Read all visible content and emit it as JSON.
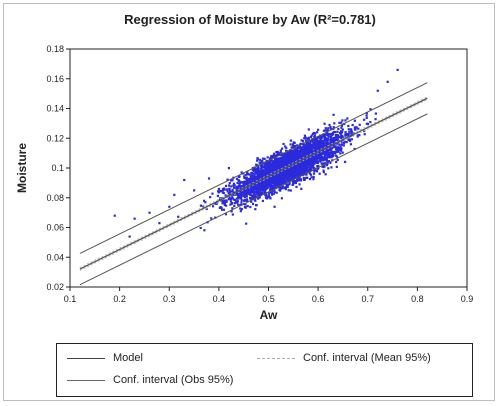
{
  "chart_data": {
    "type": "scatter",
    "title": "Regression of Moisture by Aw (R²=0.781)",
    "xlabel": "Aw",
    "ylabel": "Moisture",
    "xlim": [
      0.1,
      0.9
    ],
    "ylim": [
      0.02,
      0.18
    ],
    "xticks": [
      "0.1",
      "0.2",
      "0.3",
      "0.4",
      "0.5",
      "0.6",
      "0.7",
      "0.8",
      "0.9"
    ],
    "yticks": [
      "0.02",
      "0.04",
      "0.06",
      "0.08",
      "0.1",
      "0.12",
      "0.14",
      "0.16",
      "0.18"
    ],
    "grid": false,
    "legend_position": "bottom",
    "point_color": "#2b2bdc",
    "point_count_approx": 3500,
    "point_cloud": {
      "center": [
        0.54,
        0.103
      ],
      "x_range_main": [
        0.45,
        0.7
      ],
      "y_range": [
        0.045,
        0.166
      ]
    },
    "outlier_points": [
      {
        "x": 0.19,
        "y": 0.068
      },
      {
        "x": 0.22,
        "y": 0.054
      },
      {
        "x": 0.23,
        "y": 0.066
      },
      {
        "x": 0.26,
        "y": 0.07
      },
      {
        "x": 0.28,
        "y": 0.063
      },
      {
        "x": 0.3,
        "y": 0.074
      },
      {
        "x": 0.31,
        "y": 0.082
      },
      {
        "x": 0.33,
        "y": 0.092
      },
      {
        "x": 0.35,
        "y": 0.085
      },
      {
        "x": 0.37,
        "y": 0.078
      },
      {
        "x": 0.38,
        "y": 0.093
      },
      {
        "x": 0.4,
        "y": 0.086
      },
      {
        "x": 0.41,
        "y": 0.072
      },
      {
        "x": 0.42,
        "y": 0.1
      },
      {
        "x": 0.44,
        "y": 0.083
      },
      {
        "x": 0.72,
        "y": 0.152
      },
      {
        "x": 0.74,
        "y": 0.158
      },
      {
        "x": 0.76,
        "y": 0.166
      }
    ],
    "model": {
      "slope": 0.164,
      "intercept": 0.0124,
      "x_range": [
        0.12,
        0.82
      ],
      "color": "#555555"
    },
    "conf_mean_95": {
      "offset": 0.001,
      "color": "#aaaaaa"
    },
    "conf_obs_95": {
      "offset": 0.0105,
      "color": "#555555"
    }
  },
  "legend": {
    "model_label": "Model",
    "conf_mean_label": "Conf. interval (Mean 95%)",
    "conf_obs_label": "Conf. interval (Obs 95%)"
  }
}
